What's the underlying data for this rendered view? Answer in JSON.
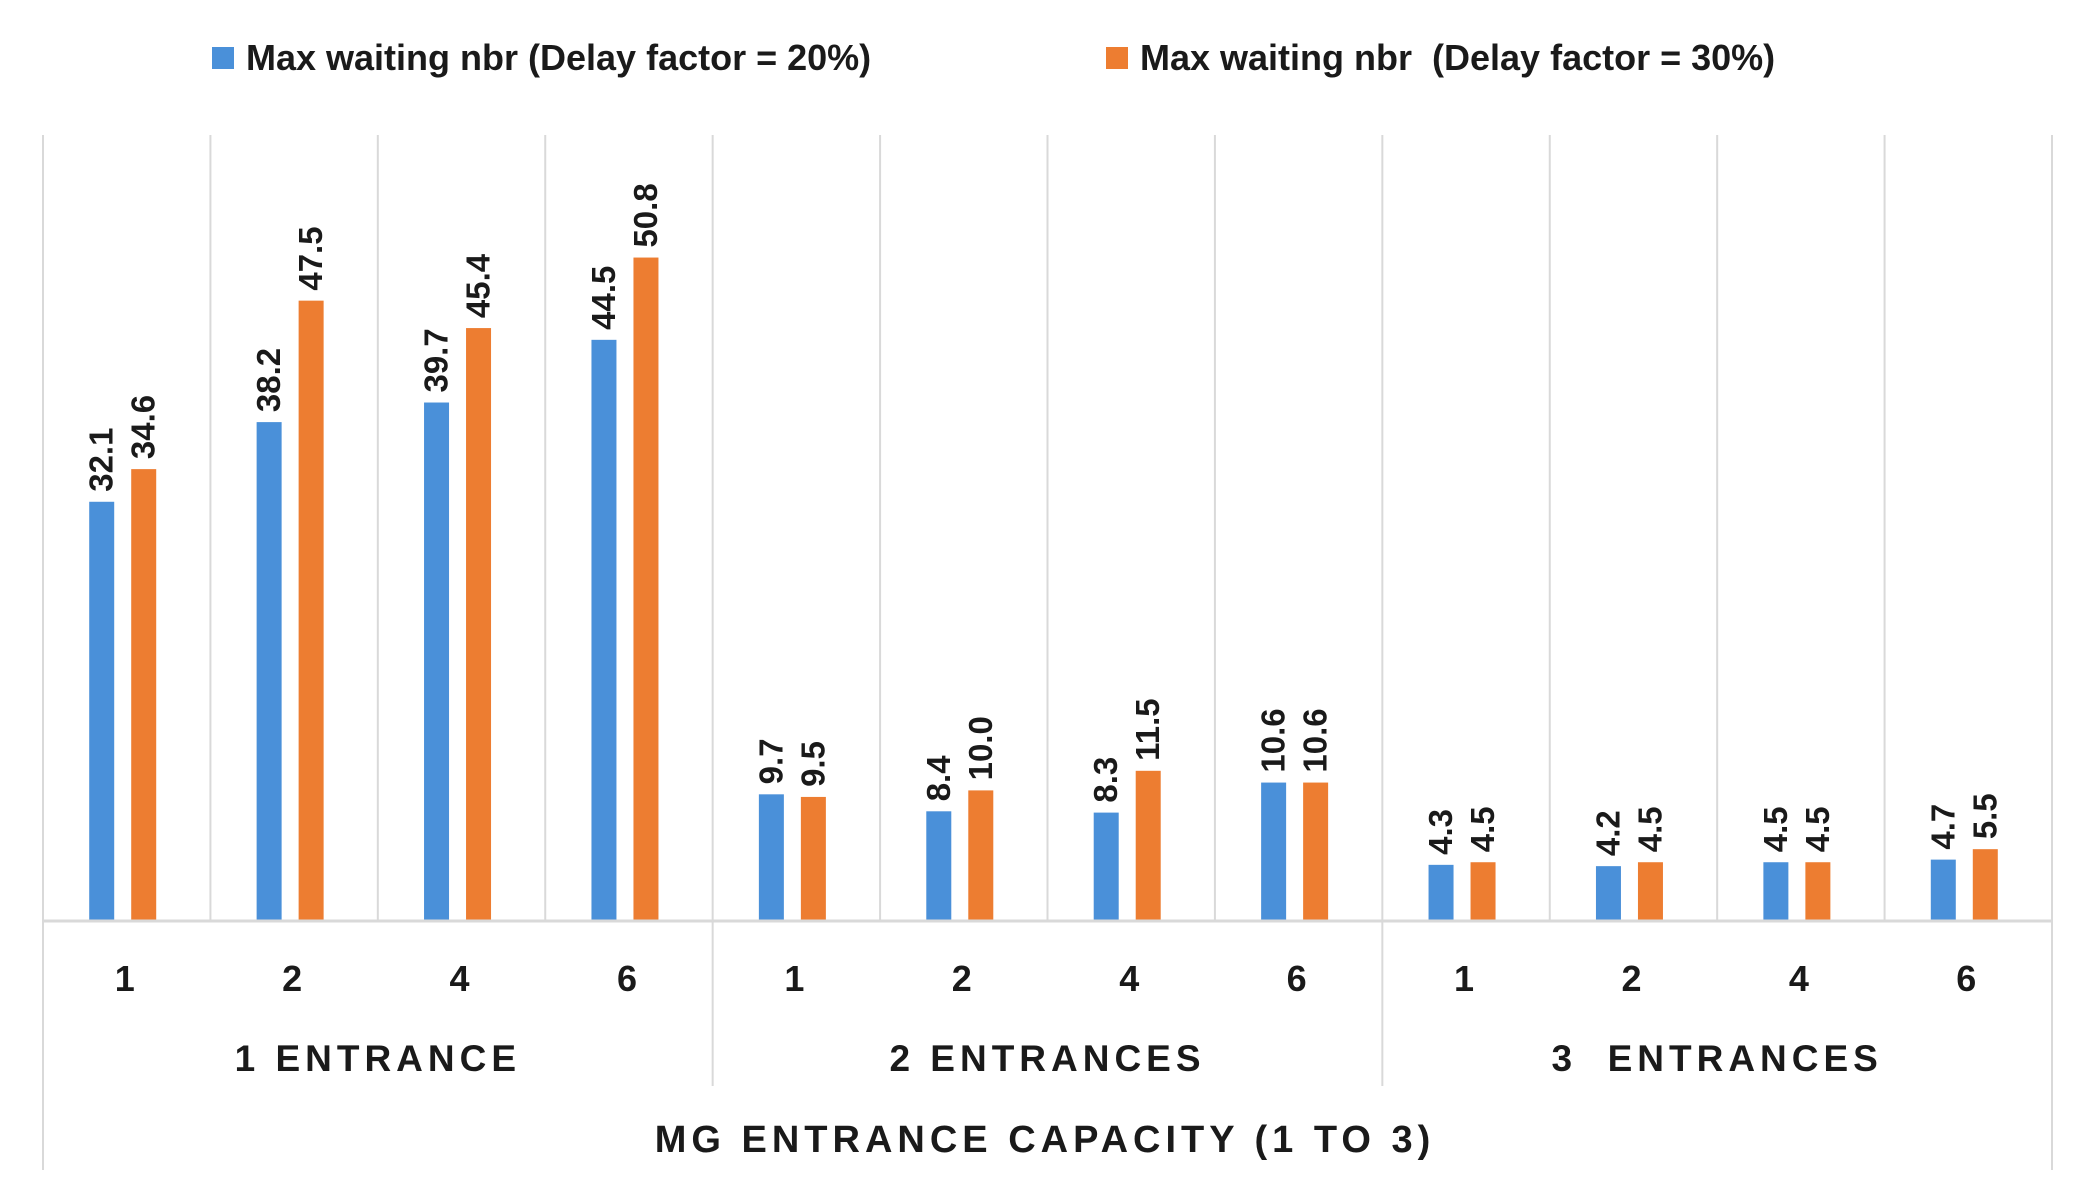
{
  "chart_data": {
    "type": "bar",
    "title": "",
    "xlabel": "MG ENTRANCE CAPACITY (1 TO 3)",
    "ylabel": "",
    "ylim": [
      0,
      52
    ],
    "grid": "vertical",
    "legend_position": "top",
    "groups": [
      {
        "label": "1 ENTRANCE",
        "categories": [
          "1",
          "2",
          "4",
          "6"
        ]
      },
      {
        "label": "2 ENTRANCES",
        "categories": [
          "1",
          "2",
          "4",
          "6"
        ]
      },
      {
        "label": "3  ENTRANCES",
        "categories": [
          "1",
          "2",
          "4",
          "6"
        ]
      }
    ],
    "series": [
      {
        "name": "Max waiting nbr (Delay factor = 20%)",
        "color": "#4A90D9",
        "values": [
          32.1,
          38.2,
          39.7,
          44.5,
          9.7,
          8.4,
          8.3,
          10.6,
          4.3,
          4.2,
          4.5,
          4.7
        ],
        "labels": [
          "32.1",
          "38.2",
          "39.7",
          "44.5",
          "9.7",
          "8.4",
          "8.3",
          "10.6",
          "4.3",
          "4.2",
          "4.5",
          "4.7"
        ]
      },
      {
        "name": "Max waiting nbr  (Delay factor = 30%)",
        "color": "#ED7D31",
        "values": [
          34.6,
          47.5,
          45.4,
          50.8,
          9.5,
          10.0,
          11.5,
          10.6,
          4.5,
          4.5,
          4.5,
          5.5
        ],
        "labels": [
          "34.6",
          "47.5",
          "45.4",
          "50.8",
          "9.5",
          "10.0",
          "11.5",
          "10.6",
          "4.5",
          "4.5",
          "4.5",
          "5.5"
        ]
      }
    ]
  }
}
